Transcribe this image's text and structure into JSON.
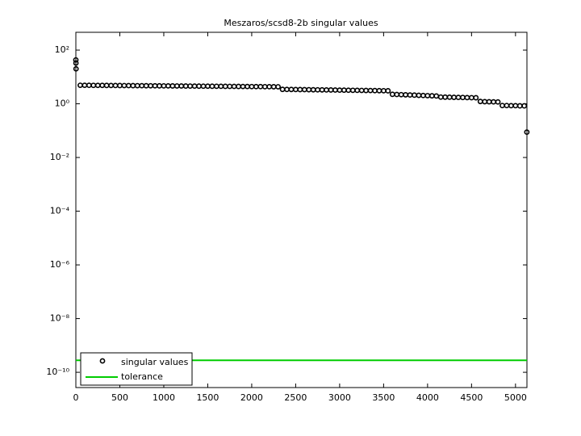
{
  "chart_data": {
    "type": "scatter",
    "title": "Meszaros/scsd8-2b singular values",
    "log_y": true,
    "legend": "lower left",
    "xlim": [
      0,
      5130
    ],
    "xticks": [
      0,
      500,
      1000,
      1500,
      2000,
      2500,
      3000,
      3500,
      4000,
      4500,
      5000
    ],
    "ylim": [
      2.7e-11,
      460
    ],
    "yticks": [
      {
        "value": 1e-10,
        "label": "10⁻¹⁰"
      },
      {
        "value": 1e-08,
        "label": "10⁻⁸"
      },
      {
        "value": 1e-06,
        "label": "10⁻⁶"
      },
      {
        "value": 0.0001,
        "label": "10⁻⁴"
      },
      {
        "value": 0.01,
        "label": "10⁻²"
      },
      {
        "value": 1,
        "label": "10⁰"
      },
      {
        "value": 100,
        "label": "10²"
      }
    ],
    "series": [
      {
        "name": "singular values",
        "kind": "scatter",
        "color": "#000000",
        "x": [
          0,
          1,
          2,
          50,
          100,
          150,
          200,
          250,
          300,
          350,
          400,
          450,
          500,
          550,
          600,
          650,
          700,
          750,
          800,
          850,
          900,
          950,
          1000,
          1050,
          1100,
          1150,
          1200,
          1250,
          1300,
          1350,
          1400,
          1450,
          1500,
          1550,
          1600,
          1650,
          1700,
          1750,
          1800,
          1850,
          1900,
          1950,
          2000,
          2050,
          2100,
          2150,
          2200,
          2250,
          2300,
          2350,
          2400,
          2450,
          2500,
          2550,
          2600,
          2650,
          2700,
          2750,
          2800,
          2850,
          2900,
          2950,
          3000,
          3050,
          3100,
          3150,
          3200,
          3250,
          3300,
          3350,
          3400,
          3450,
          3500,
          3550,
          3600,
          3650,
          3700,
          3750,
          3800,
          3850,
          3900,
          3950,
          4000,
          4050,
          4100,
          4150,
          4200,
          4250,
          4300,
          4350,
          4400,
          4450,
          4500,
          4550,
          4600,
          4650,
          4700,
          4750,
          4800,
          4850,
          4900,
          4950,
          5000,
          5050,
          5100,
          5129
        ],
        "values": [
          43,
          33,
          20,
          4.9,
          4.89,
          4.88,
          4.86,
          4.85,
          4.84,
          4.82,
          4.81,
          4.8,
          4.78,
          4.77,
          4.76,
          4.74,
          4.73,
          4.72,
          4.7,
          4.69,
          4.68,
          4.66,
          4.65,
          4.64,
          4.62,
          4.61,
          4.6,
          4.58,
          4.57,
          4.56,
          4.54,
          4.53,
          4.52,
          4.5,
          4.49,
          4.48,
          4.46,
          4.45,
          4.44,
          4.42,
          4.41,
          4.4,
          4.38,
          4.37,
          4.36,
          4.34,
          4.33,
          4.32,
          4.3,
          3.45,
          3.43,
          3.42,
          3.4,
          3.38,
          3.37,
          3.35,
          3.33,
          3.32,
          3.3,
          3.28,
          3.27,
          3.25,
          3.23,
          3.22,
          3.2,
          3.18,
          3.17,
          3.15,
          3.13,
          3.12,
          3.1,
          3.08,
          3.07,
          3.05,
          2.25,
          2.22,
          2.19,
          2.16,
          2.13,
          2.1,
          2.07,
          2.04,
          2.01,
          1.98,
          1.95,
          1.78,
          1.77,
          1.76,
          1.74,
          1.73,
          1.72,
          1.7,
          1.69,
          1.68,
          1.22,
          1.2,
          1.19,
          1.18,
          1.17,
          0.86,
          0.86,
          0.85,
          0.85,
          0.84,
          0.84,
          0.088
        ]
      },
      {
        "name": "tolerance",
        "kind": "line",
        "color": "#00cc00",
        "x": [
          0,
          5130
        ],
        "values": [
          2.8e-10,
          2.8e-10
        ]
      }
    ]
  }
}
